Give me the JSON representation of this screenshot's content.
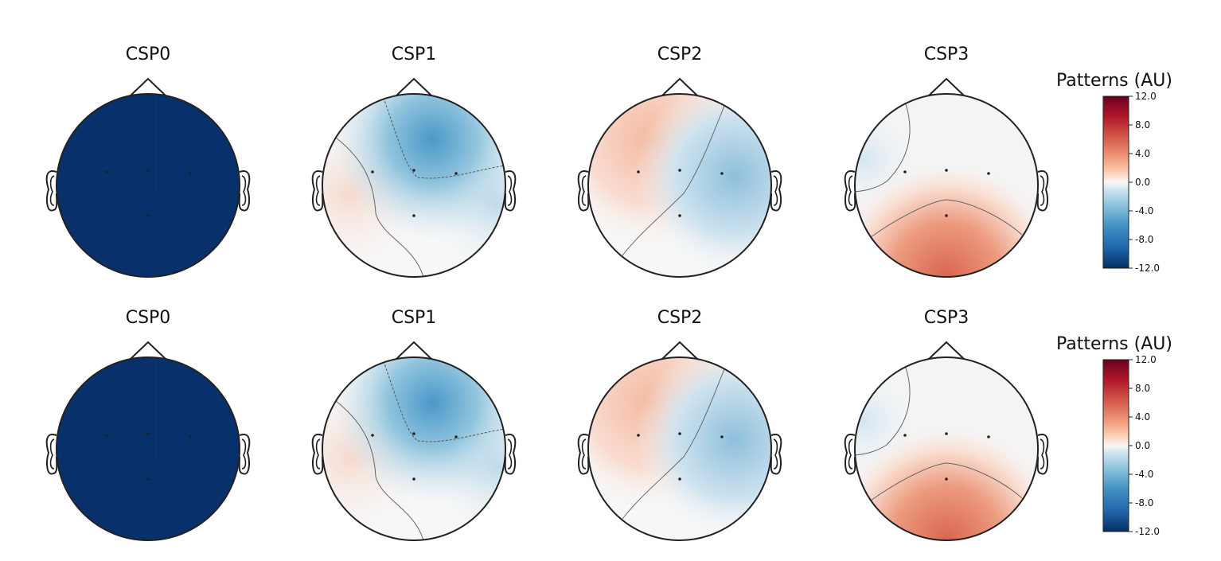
{
  "chart_data": {
    "type": "heatmap",
    "rows": [
      {
        "topomaps": [
          {
            "title": "CSP0",
            "fill": "#08306b"
          },
          {
            "title": "CSP1"
          },
          {
            "title": "CSP2"
          },
          {
            "title": "CSP3"
          }
        ],
        "colorbar": {
          "label": "Patterns (AU)",
          "ticks": [
            "12.0",
            "8.0",
            "4.0",
            "0.0",
            "-4.0",
            "-8.0",
            "-12.0"
          ],
          "range": [
            -12,
            12
          ]
        }
      },
      {
        "topomaps": [
          {
            "title": "CSP0",
            "fill": "#08306b"
          },
          {
            "title": "CSP1"
          },
          {
            "title": "CSP2"
          },
          {
            "title": "CSP3"
          }
        ],
        "colorbar": {
          "label": "Patterns (AU)",
          "ticks": [
            "12.0",
            "8.0",
            "4.0",
            "0.0",
            "-4.0",
            "-8.0",
            "-12.0"
          ],
          "range": [
            -12,
            12
          ]
        }
      }
    ],
    "colormap": "RdBu_r",
    "colors": {
      "max": "#67001f",
      "high": "#d6604d",
      "mid": "#f7f7f7",
      "low": "#4393c3",
      "min": "#053061"
    }
  }
}
